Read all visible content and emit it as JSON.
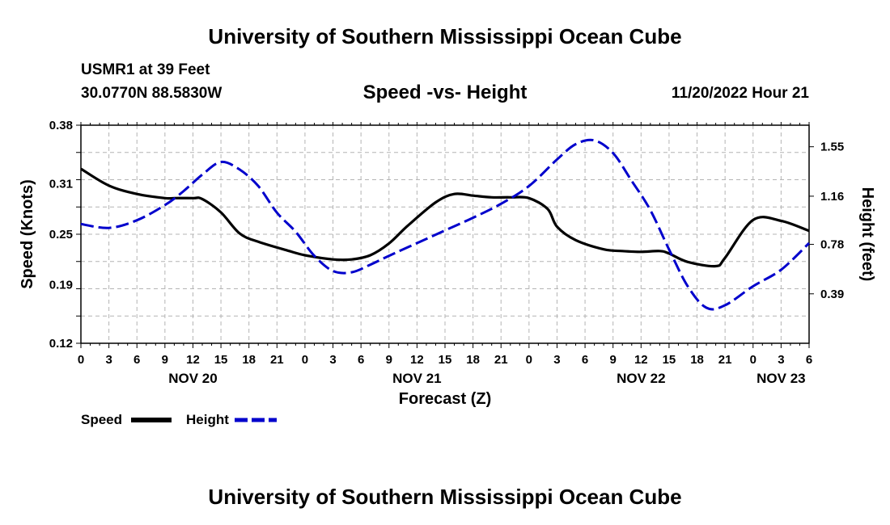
{
  "header": {
    "title": "University of Southern Mississippi Ocean Cube",
    "station": "USMR1 at 39 Feet",
    "coords": "30.0770N  88.5830W",
    "subtitle": "Speed -vs- Height",
    "datetime": "11/20/2022 Hour 21"
  },
  "footer": {
    "title": "University of Southern Mississippi Ocean Cube"
  },
  "legend": {
    "speed_label": "Speed",
    "height_label": "Height"
  },
  "colors": {
    "speed": "#000000",
    "height": "#0000cc",
    "grid": "#b4b4b4"
  },
  "chart_data": {
    "type": "line",
    "title": "Speed -vs- Height",
    "xlabel": "Forecast (Z)",
    "ylabel": "Speed (Knots)",
    "y2label": "Height (feet)",
    "xlim": [
      0,
      78
    ],
    "ylim": [
      0.12,
      0.38
    ],
    "y2lim": [
      0.0,
      1.72
    ],
    "x_ticks": [
      0,
      3,
      6,
      9,
      12,
      15,
      18,
      21,
      24,
      27,
      30,
      33,
      36,
      39,
      42,
      45,
      48,
      51,
      54,
      57,
      60,
      63,
      66,
      69,
      72,
      75,
      78
    ],
    "x_tick_labels": [
      "0",
      "3",
      "6",
      "9",
      "12",
      "15",
      "18",
      "21",
      "0",
      "3",
      "6",
      "9",
      "12",
      "15",
      "18",
      "21",
      "0",
      "3",
      "6",
      "9",
      "12",
      "15",
      "18",
      "21",
      "0",
      "3",
      "6"
    ],
    "day_labels": [
      {
        "label": "NOV 20",
        "x": 12
      },
      {
        "label": "NOV 21",
        "x": 36
      },
      {
        "label": "NOV 22",
        "x": 60
      },
      {
        "label": "NOV 23",
        "x": 75
      }
    ],
    "y_ticks": [
      0.12,
      0.19,
      0.25,
      0.31,
      0.38
    ],
    "y_tick_labels": [
      "0.12",
      "0.19",
      "0.25",
      "0.31",
      "0.38"
    ],
    "y2_ticks": [
      0.39,
      0.78,
      1.16,
      1.55
    ],
    "y2_tick_labels": [
      "0.39",
      "0.78",
      "1.16",
      "1.55"
    ],
    "series": [
      {
        "name": "Speed",
        "axis": "left",
        "style": "solid",
        "x": [
          0,
          3,
          6,
          9,
          10,
          12,
          13,
          15,
          17,
          19,
          22,
          24,
          27,
          29,
          31,
          33,
          35,
          38,
          40,
          42,
          44,
          46,
          48,
          50,
          51,
          53,
          56,
          58,
          60,
          62,
          63,
          65,
          68,
          69,
          72,
          75,
          78
        ],
        "values": [
          0.328,
          0.308,
          0.298,
          0.293,
          0.293,
          0.293,
          0.292,
          0.276,
          0.251,
          0.241,
          0.231,
          0.225,
          0.22,
          0.22,
          0.225,
          0.239,
          0.26,
          0.288,
          0.298,
          0.296,
          0.294,
          0.294,
          0.293,
          0.28,
          0.259,
          0.243,
          0.232,
          0.23,
          0.229,
          0.23,
          0.227,
          0.217,
          0.212,
          0.222,
          0.267,
          0.266,
          0.254
        ]
      },
      {
        "name": "Height",
        "axis": "right",
        "style": "dashed",
        "x": [
          0,
          3,
          6,
          9,
          11,
          13,
          15,
          17,
          19,
          21,
          23,
          25,
          27,
          29,
          31,
          33,
          36,
          39,
          42,
          45,
          48,
          51,
          53,
          55,
          57,
          59,
          61,
          63,
          65,
          67,
          69,
          72,
          75,
          78
        ],
        "values": [
          0.94,
          0.91,
          0.97,
          1.09,
          1.2,
          1.33,
          1.43,
          1.37,
          1.24,
          1.03,
          0.88,
          0.69,
          0.57,
          0.56,
          0.62,
          0.69,
          0.79,
          0.89,
          0.99,
          1.1,
          1.24,
          1.45,
          1.57,
          1.6,
          1.5,
          1.28,
          1.05,
          0.74,
          0.45,
          0.28,
          0.3,
          0.45,
          0.58,
          0.79
        ]
      }
    ]
  }
}
